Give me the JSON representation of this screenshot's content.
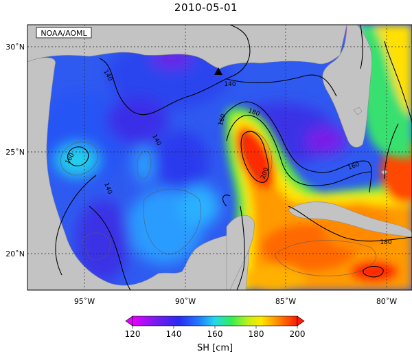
{
  "title": "2010-05-01",
  "credit": "NOAA/AOML",
  "lat_ticks": [
    "30˚N",
    "25˚N",
    "20˚N"
  ],
  "lon_ticks": [
    "95˚W",
    "90˚W",
    "85˚W",
    "80˚W"
  ],
  "contour_labels": [
    "140",
    "160",
    "180",
    "200"
  ],
  "colorbar": {
    "ticks": [
      "120",
      "140",
      "160",
      "180",
      "200"
    ],
    "label": "SH [cm]",
    "range": [
      120,
      200
    ]
  },
  "colors": {
    "land": "#c0c0c0",
    "low": "#e000ff",
    "high": "#ff0000"
  }
}
